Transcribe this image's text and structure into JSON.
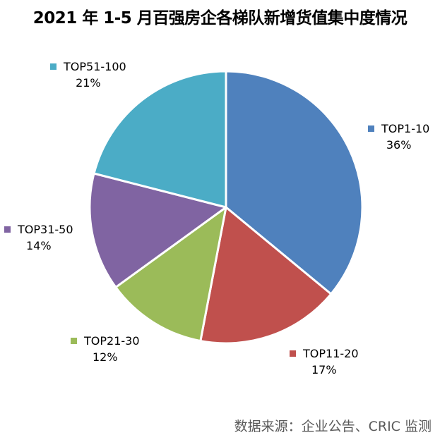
{
  "chart_data": {
    "type": "pie",
    "title": "2021 年 1-5 月百强房企各梯队新增货值集中度情况",
    "categories": [
      "TOP1-10",
      "TOP11-20",
      "TOP21-30",
      "TOP31-50",
      "TOP51-100"
    ],
    "values": [
      36,
      17,
      12,
      14,
      21
    ],
    "unit": "%",
    "colors": [
      "#4F81BD",
      "#C0504D",
      "#9BBB59",
      "#8064A2",
      "#4BACC6"
    ],
    "start_angle": "12 o'clock, clockwise",
    "legend": "data labels with category name and percentage beside each slice",
    "source": "数据来源：企业公告、CRIC 监测"
  },
  "labels": [
    {
      "name": "TOP1-10",
      "pct": "36%"
    },
    {
      "name": "TOP11-20",
      "pct": "17%"
    },
    {
      "name": "TOP21-30",
      "pct": "12%"
    },
    {
      "name": "TOP31-50",
      "pct": "14%"
    },
    {
      "name": "TOP51-100",
      "pct": "21%"
    }
  ]
}
